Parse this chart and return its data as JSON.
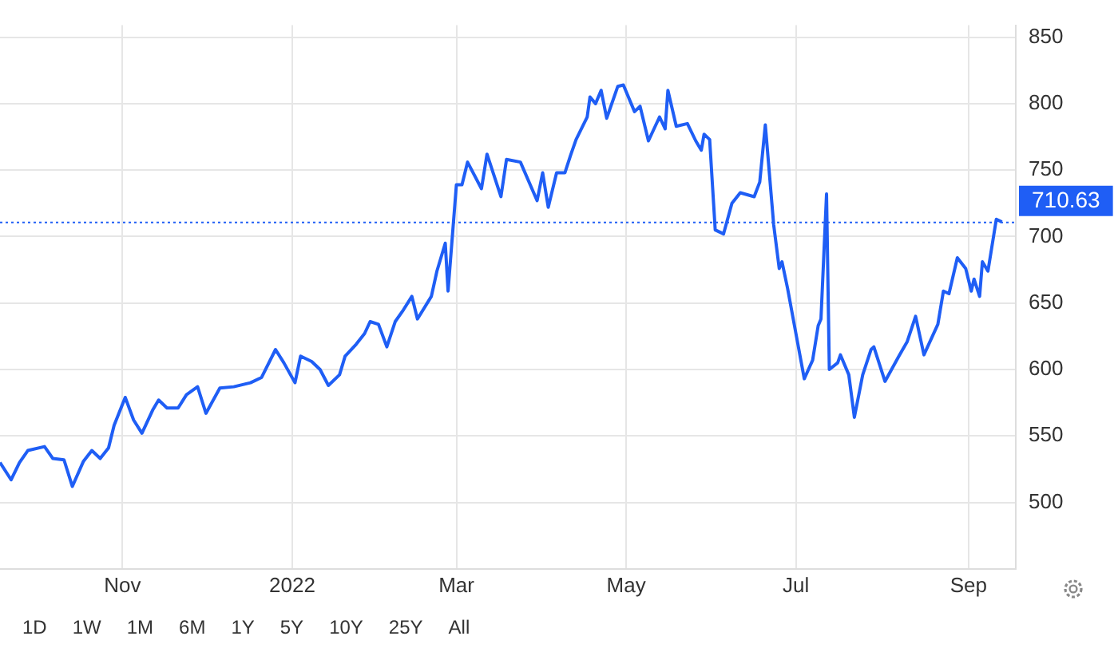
{
  "chart_data": {
    "type": "line",
    "x": [
      "2021-09-18",
      "2021-09-22",
      "2021-09-25",
      "2021-09-28",
      "2021-10-04",
      "2021-10-07",
      "2021-10-11",
      "2021-10-14",
      "2021-10-18",
      "2021-10-21",
      "2021-10-24",
      "2021-10-27",
      "2021-10-29",
      "2021-11-02",
      "2021-11-05",
      "2021-11-08",
      "2021-11-12",
      "2021-11-14",
      "2021-11-17",
      "2021-11-21",
      "2021-11-24",
      "2021-11-28",
      "2021-12-01",
      "2021-12-06",
      "2021-12-11",
      "2021-12-17",
      "2021-12-21",
      "2021-12-26",
      "2021-12-29",
      "2022-01-02",
      "2022-01-04",
      "2022-01-08",
      "2022-01-11",
      "2022-01-14",
      "2022-01-18",
      "2022-01-20",
      "2022-01-24",
      "2022-01-27",
      "2022-01-29",
      "2022-02-01",
      "2022-02-04",
      "2022-02-07",
      "2022-02-10",
      "2022-02-13",
      "2022-02-15",
      "2022-02-20",
      "2022-02-22",
      "2022-02-25",
      "2022-02-26",
      "2022-03-01",
      "2022-03-03",
      "2022-03-05",
      "2022-03-10",
      "2022-03-12",
      "2022-03-17",
      "2022-03-19",
      "2022-03-24",
      "2022-03-30",
      "2022-04-01",
      "2022-04-03",
      "2022-04-06",
      "2022-04-09",
      "2022-04-11",
      "2022-04-13",
      "2022-04-17",
      "2022-04-18",
      "2022-04-20",
      "2022-04-22",
      "2022-04-24",
      "2022-04-28",
      "2022-04-30",
      "2022-05-04",
      "2022-05-06",
      "2022-05-09",
      "2022-05-13",
      "2022-05-15",
      "2022-05-16",
      "2022-05-19",
      "2022-05-23",
      "2022-05-26",
      "2022-05-28",
      "2022-05-29",
      "2022-05-31",
      "2022-06-02",
      "2022-06-05",
      "2022-06-08",
      "2022-06-11",
      "2022-06-16",
      "2022-06-18",
      "2022-06-20",
      "2022-06-23",
      "2022-06-25",
      "2022-06-26",
      "2022-06-28",
      "2022-07-01",
      "2022-07-04",
      "2022-07-07",
      "2022-07-09",
      "2022-07-10",
      "2022-07-12",
      "2022-07-13",
      "2022-07-16",
      "2022-07-17",
      "2022-07-20",
      "2022-07-22",
      "2022-07-25",
      "2022-07-28",
      "2022-07-29",
      "2022-08-02",
      "2022-08-07",
      "2022-08-10",
      "2022-08-13",
      "2022-08-16",
      "2022-08-21",
      "2022-08-23",
      "2022-08-25",
      "2022-08-28",
      "2022-08-31",
      "2022-09-02",
      "2022-09-03",
      "2022-09-05",
      "2022-09-06",
      "2022-09-08",
      "2022-09-11",
      "2022-09-13"
    ],
    "series": [
      {
        "color": "#1f5ef5",
        "values": [
          530,
          517,
          530,
          539,
          542,
          533,
          532,
          512,
          531,
          539,
          533,
          541,
          558,
          579,
          562,
          552,
          570,
          577,
          571,
          571,
          581,
          587,
          567,
          586,
          587,
          590,
          594,
          615,
          605,
          590,
          610,
          606,
          600,
          588,
          596,
          610,
          619,
          627,
          636,
          634,
          617,
          636,
          645,
          655,
          638,
          655,
          674,
          695,
          659,
          739,
          739,
          756,
          736,
          762,
          730,
          758,
          756,
          727,
          748,
          722,
          748,
          748,
          761,
          773,
          790,
          805,
          800,
          810,
          789,
          813,
          814,
          794,
          798,
          772,
          790,
          781,
          810,
          783,
          785,
          772,
          765,
          777,
          773,
          705,
          702,
          725,
          733,
          730,
          741,
          784,
          709,
          676,
          681,
          661,
          627,
          593,
          607,
          633,
          638,
          732,
          600,
          605,
          611,
          596,
          564,
          596,
          615,
          617,
          591,
          610,
          621,
          640,
          611,
          634,
          659,
          657,
          684,
          676,
          659,
          668,
          655,
          681,
          674,
          713,
          711
        ]
      }
    ],
    "xlim": [
      "2021-09-18",
      "2022-09-18"
    ],
    "xticks": [
      {
        "value": "2021-11-01",
        "label": "Nov"
      },
      {
        "value": "2022-01-01",
        "label": "2022"
      },
      {
        "value": "2022-03-01",
        "label": "Mar"
      },
      {
        "value": "2022-05-01",
        "label": "May"
      },
      {
        "value": "2022-07-01",
        "label": "Jul"
      },
      {
        "value": "2022-09-01",
        "label": "Sep"
      }
    ],
    "ylim": [
      450,
      859
    ],
    "yticks": [
      500,
      550,
      600,
      650,
      700,
      750,
      800,
      850
    ],
    "ref_lines": [
      {
        "axis": "y",
        "value": 710.63,
        "label": "710.63",
        "color": "#1f5ef5",
        "line_style": "dotted"
      }
    ],
    "grid": true,
    "legend": false,
    "marker": "none",
    "line_style": "solid",
    "annotations": [
      "1D",
      "1W",
      "1M",
      "6M",
      "1Y",
      "5Y",
      "10Y",
      "25Y",
      "All"
    ]
  }
}
